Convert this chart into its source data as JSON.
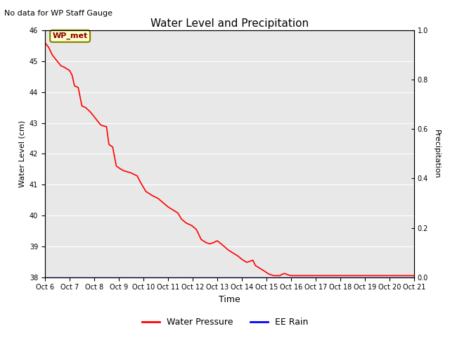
{
  "title": "Water Level and Precipitation",
  "top_left_text": "No data for WP Staff Gauge",
  "xlabel": "Time",
  "ylabel_left": "Water Level (cm)",
  "ylabel_right": "Precipitation",
  "annotation_label": "WP_met",
  "legend_entries": [
    "Water Pressure",
    "EE Rain"
  ],
  "legend_colors": [
    "red",
    "blue"
  ],
  "ylim_left": [
    38.0,
    46.0
  ],
  "ylim_right": [
    0.0,
    1.0
  ],
  "yticks_left": [
    38.0,
    39.0,
    40.0,
    41.0,
    42.0,
    43.0,
    44.0,
    45.0,
    46.0
  ],
  "yticks_right": [
    0.0,
    0.2,
    0.4,
    0.6,
    0.8,
    1.0
  ],
  "xtick_labels": [
    "Oct 6",
    "Oct 7",
    "Oct 8",
    "Oct 9",
    "Oct 10",
    "Oct 11",
    "Oct 12",
    "Oct 13",
    "Oct 14",
    "Oct 15",
    "Oct 16",
    "Oct 17",
    "Oct 18",
    "Oct 19",
    "Oct 20",
    "Oct 21"
  ],
  "background_color": "#e8e8e8",
  "line_color": "red",
  "rain_color": "blue",
  "water_level_data": [
    [
      0.0,
      45.6
    ],
    [
      0.15,
      45.45
    ],
    [
      0.3,
      45.2
    ],
    [
      0.5,
      45.0
    ],
    [
      0.65,
      44.85
    ],
    [
      0.75,
      44.82
    ],
    [
      1.0,
      44.7
    ],
    [
      1.1,
      44.55
    ],
    [
      1.2,
      44.2
    ],
    [
      1.35,
      44.15
    ],
    [
      1.5,
      43.55
    ],
    [
      1.65,
      43.5
    ],
    [
      1.85,
      43.35
    ],
    [
      2.0,
      43.2
    ],
    [
      2.15,
      43.05
    ],
    [
      2.25,
      42.95
    ],
    [
      2.3,
      42.92
    ],
    [
      2.5,
      42.88
    ],
    [
      2.6,
      42.3
    ],
    [
      2.75,
      42.22
    ],
    [
      2.9,
      41.6
    ],
    [
      3.05,
      41.52
    ],
    [
      3.2,
      41.45
    ],
    [
      3.5,
      41.38
    ],
    [
      3.75,
      41.28
    ],
    [
      3.9,
      41.05
    ],
    [
      4.1,
      40.78
    ],
    [
      4.35,
      40.65
    ],
    [
      4.6,
      40.55
    ],
    [
      4.85,
      40.38
    ],
    [
      5.0,
      40.28
    ],
    [
      5.2,
      40.18
    ],
    [
      5.4,
      40.08
    ],
    [
      5.55,
      39.88
    ],
    [
      5.75,
      39.75
    ],
    [
      5.95,
      39.68
    ],
    [
      6.15,
      39.55
    ],
    [
      6.35,
      39.22
    ],
    [
      6.55,
      39.12
    ],
    [
      6.7,
      39.08
    ],
    [
      6.85,
      39.12
    ],
    [
      7.0,
      39.18
    ],
    [
      7.1,
      39.12
    ],
    [
      7.25,
      39.02
    ],
    [
      7.45,
      38.88
    ],
    [
      7.65,
      38.78
    ],
    [
      7.85,
      38.68
    ],
    [
      8.0,
      38.58
    ],
    [
      8.2,
      38.48
    ],
    [
      8.35,
      38.52
    ],
    [
      8.45,
      38.55
    ],
    [
      8.55,
      38.38
    ],
    [
      8.75,
      38.28
    ],
    [
      8.95,
      38.18
    ],
    [
      9.1,
      38.1
    ],
    [
      9.3,
      38.05
    ],
    [
      9.55,
      38.05
    ],
    [
      9.65,
      38.1
    ],
    [
      9.75,
      38.12
    ],
    [
      9.85,
      38.08
    ],
    [
      10.0,
      38.05
    ],
    [
      15.0,
      38.05
    ]
  ]
}
